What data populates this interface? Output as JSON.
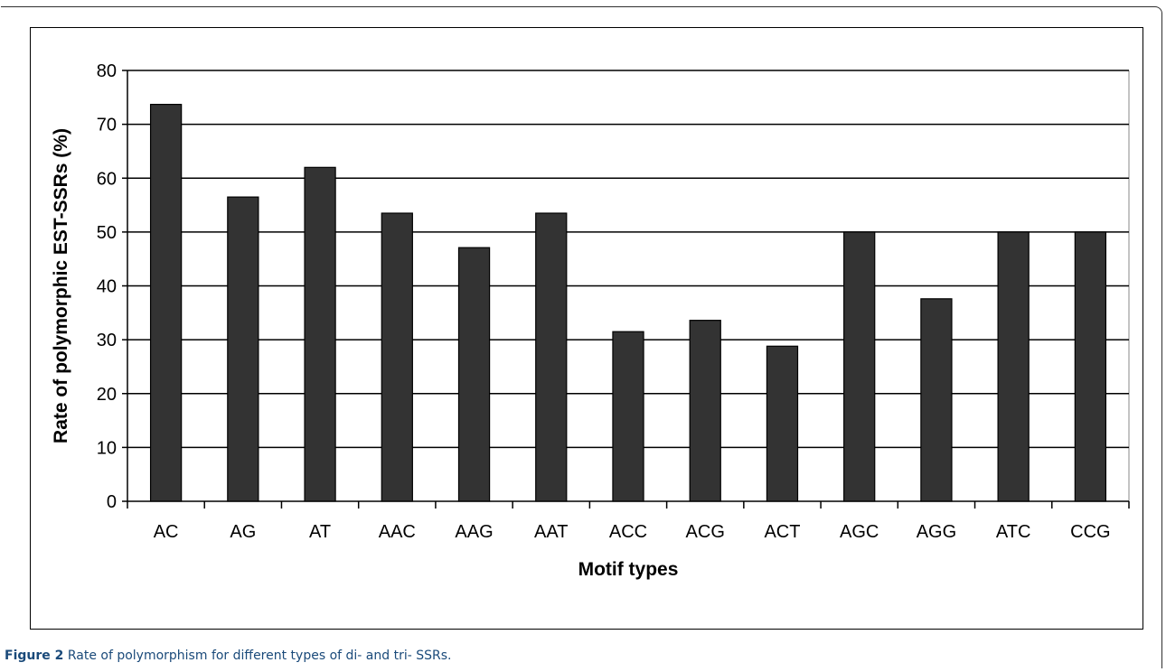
{
  "chart_data": {
    "type": "bar",
    "categories": [
      "AC",
      "AG",
      "AT",
      "AAC",
      "AAG",
      "AAT",
      "ACC",
      "ACG",
      "ACT",
      "AGC",
      "AGG",
      "ATC",
      "CCG"
    ],
    "values": [
      73.7,
      56.5,
      62.0,
      53.5,
      47.1,
      53.5,
      31.5,
      33.6,
      28.8,
      50.0,
      37.6,
      50.0,
      50.0
    ],
    "xlabel": "Motif types",
    "ylabel": "Rate of polymorphic EST-SSRs (%)",
    "ylim": [
      0,
      80
    ],
    "yticks": [
      0,
      10,
      20,
      30,
      40,
      50,
      60,
      70,
      80
    ],
    "grid": true,
    "bar_color": "#333333"
  },
  "caption": {
    "label": "Figure 2",
    "text": "Rate of polymorphism for different types of di- and tri- SSRs."
  }
}
